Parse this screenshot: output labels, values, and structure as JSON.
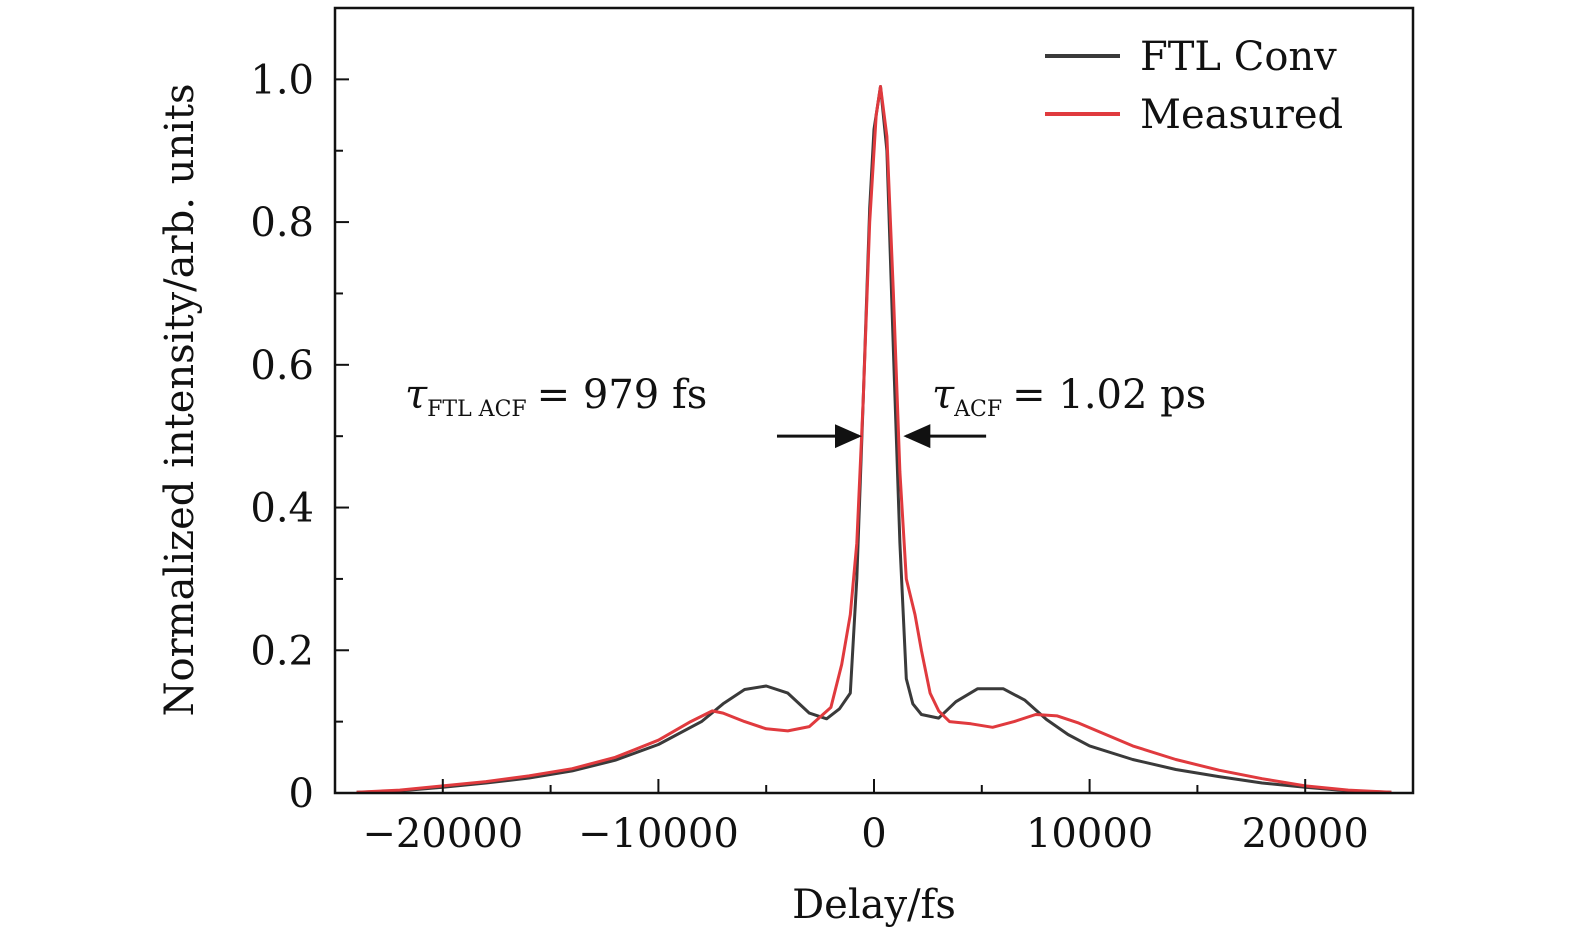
{
  "chart_data": {
    "type": "line",
    "xlabel": "Delay/fs",
    "ylabel": "Normalized intensity/arb. units",
    "xlim": [
      -25000,
      25000
    ],
    "ylim": [
      0,
      1.1
    ],
    "xticks": [
      -20000,
      -10000,
      0,
      10000,
      20000
    ],
    "xtick_labels": [
      "−20000",
      "−10000",
      "0",
      "10000",
      "20000"
    ],
    "yticks": [
      0,
      0.2,
      0.4,
      0.6,
      0.8,
      1.0
    ],
    "ytick_labels": [
      "0",
      "0.2",
      "0.4",
      "0.6",
      "0.8",
      "1.0"
    ],
    "grid": false,
    "legend_position": "top-right",
    "series": [
      {
        "name": "FTL Conv",
        "color": "#3a3a3a",
        "points": [
          [
            -24000,
            0.001
          ],
          [
            -22000,
            0.003
          ],
          [
            -20000,
            0.008
          ],
          [
            -18000,
            0.014
          ],
          [
            -16000,
            0.021
          ],
          [
            -14000,
            0.031
          ],
          [
            -12000,
            0.046
          ],
          [
            -10000,
            0.068
          ],
          [
            -8000,
            0.1
          ],
          [
            -7000,
            0.125
          ],
          [
            -6000,
            0.145
          ],
          [
            -5000,
            0.15
          ],
          [
            -4000,
            0.14
          ],
          [
            -3000,
            0.112
          ],
          [
            -2200,
            0.104
          ],
          [
            -1600,
            0.118
          ],
          [
            -1100,
            0.14
          ],
          [
            -800,
            0.3
          ],
          [
            -500,
            0.55
          ],
          [
            -200,
            0.82
          ],
          [
            0,
            0.93
          ],
          [
            300,
            0.99
          ],
          [
            600,
            0.9
          ],
          [
            900,
            0.62
          ],
          [
            1200,
            0.35
          ],
          [
            1500,
            0.16
          ],
          [
            1800,
            0.125
          ],
          [
            2200,
            0.11
          ],
          [
            3000,
            0.105
          ],
          [
            3800,
            0.128
          ],
          [
            4800,
            0.146
          ],
          [
            6000,
            0.146
          ],
          [
            7000,
            0.13
          ],
          [
            8000,
            0.103
          ],
          [
            9000,
            0.082
          ],
          [
            10000,
            0.066
          ],
          [
            12000,
            0.047
          ],
          [
            14000,
            0.033
          ],
          [
            16000,
            0.023
          ],
          [
            18000,
            0.014
          ],
          [
            20000,
            0.008
          ],
          [
            22000,
            0.003
          ],
          [
            24000,
            0.001
          ]
        ]
      },
      {
        "name": "Measured",
        "color": "#e03a3e",
        "points": [
          [
            -24000,
            0.001
          ],
          [
            -22000,
            0.004
          ],
          [
            -20000,
            0.01
          ],
          [
            -18000,
            0.016
          ],
          [
            -16000,
            0.024
          ],
          [
            -14000,
            0.034
          ],
          [
            -12000,
            0.05
          ],
          [
            -10000,
            0.074
          ],
          [
            -8500,
            0.1
          ],
          [
            -7500,
            0.115
          ],
          [
            -7000,
            0.112
          ],
          [
            -6000,
            0.1
          ],
          [
            -5000,
            0.09
          ],
          [
            -4000,
            0.087
          ],
          [
            -3000,
            0.093
          ],
          [
            -2000,
            0.12
          ],
          [
            -1500,
            0.18
          ],
          [
            -1100,
            0.25
          ],
          [
            -800,
            0.35
          ],
          [
            -500,
            0.55
          ],
          [
            -200,
            0.8
          ],
          [
            100,
            0.95
          ],
          [
            300,
            0.99
          ],
          [
            600,
            0.92
          ],
          [
            900,
            0.7
          ],
          [
            1200,
            0.45
          ],
          [
            1500,
            0.3
          ],
          [
            1900,
            0.25
          ],
          [
            2200,
            0.2
          ],
          [
            2600,
            0.14
          ],
          [
            3000,
            0.115
          ],
          [
            3500,
            0.1
          ],
          [
            4500,
            0.097
          ],
          [
            5500,
            0.092
          ],
          [
            6500,
            0.1
          ],
          [
            7500,
            0.11
          ],
          [
            8500,
            0.108
          ],
          [
            9500,
            0.098
          ],
          [
            10500,
            0.085
          ],
          [
            12000,
            0.066
          ],
          [
            14000,
            0.047
          ],
          [
            16000,
            0.032
          ],
          [
            18000,
            0.02
          ],
          [
            20000,
            0.01
          ],
          [
            22000,
            0.004
          ],
          [
            24000,
            0.001
          ]
        ]
      }
    ],
    "annotations": [
      {
        "symbol": "τ",
        "subscript": "FTL ACF",
        "text": "= 979 fs",
        "arrow_from_x": -4500,
        "arrow_to_x": -700,
        "arrow_y": 0.5
      },
      {
        "symbol": "τ",
        "subscript": "ACF",
        "text": "= 1.02 ps",
        "arrow_from_x": 5200,
        "arrow_to_x": 1500,
        "arrow_y": 0.5
      }
    ]
  }
}
